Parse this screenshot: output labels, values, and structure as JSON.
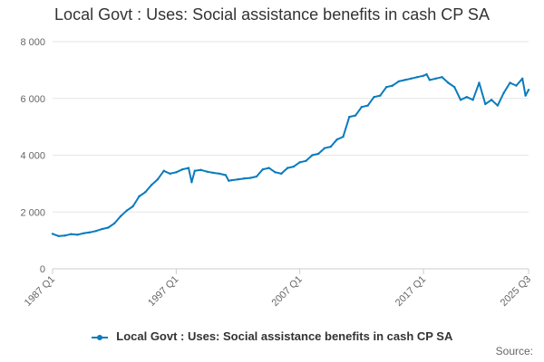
{
  "chart_data": {
    "type": "line",
    "title": "Local Govt : Uses: Social assistance benefits in cash CP SA",
    "xlabel": "",
    "ylabel": "",
    "x_start": "1987 Q1",
    "x_end": "2025 Q3",
    "x_ticks": [
      "1987 Q1",
      "1997 Q1",
      "2007 Q1",
      "2017 Q1",
      "2025 Q3"
    ],
    "y_ticks": [
      "0",
      "2 000",
      "4 000",
      "6 000",
      "8 000"
    ],
    "ylim": [
      0,
      8000
    ],
    "grid": true,
    "legend_position": "bottom",
    "color": "#0a7bbd",
    "series": [
      {
        "name": "Local Govt : Uses: Social assistance benefits in cash CP SA",
        "points": [
          [
            "1987 Q1",
            1230
          ],
          [
            "1987 Q3",
            1150
          ],
          [
            "1988 Q1",
            1170
          ],
          [
            "1988 Q3",
            1220
          ],
          [
            "1989 Q1",
            1200
          ],
          [
            "1989 Q3",
            1250
          ],
          [
            "1990 Q1",
            1280
          ],
          [
            "1990 Q3",
            1330
          ],
          [
            "1991 Q1",
            1400
          ],
          [
            "1991 Q3",
            1450
          ],
          [
            "1992 Q1",
            1600
          ],
          [
            "1992 Q3",
            1850
          ],
          [
            "1993 Q1",
            2050
          ],
          [
            "1993 Q3",
            2200
          ],
          [
            "1994 Q1",
            2550
          ],
          [
            "1994 Q3",
            2700
          ],
          [
            "1995 Q1",
            2950
          ],
          [
            "1995 Q3",
            3150
          ],
          [
            "1996 Q1",
            3450
          ],
          [
            "1996 Q3",
            3350
          ],
          [
            "1997 Q1",
            3400
          ],
          [
            "1997 Q3",
            3500
          ],
          [
            "1998 Q1",
            3550
          ],
          [
            "1998 Q2",
            3050
          ],
          [
            "1998 Q3",
            3450
          ],
          [
            "1999 Q1",
            3480
          ],
          [
            "1999 Q3",
            3420
          ],
          [
            "2000 Q1",
            3380
          ],
          [
            "2000 Q3",
            3350
          ],
          [
            "2001 Q1",
            3300
          ],
          [
            "2001 Q2",
            3100
          ],
          [
            "2001 Q3",
            3120
          ],
          [
            "2002 Q1",
            3150
          ],
          [
            "2002 Q3",
            3180
          ],
          [
            "2003 Q1",
            3200
          ],
          [
            "2003 Q3",
            3250
          ],
          [
            "2004 Q1",
            3500
          ],
          [
            "2004 Q3",
            3550
          ],
          [
            "2005 Q1",
            3400
          ],
          [
            "2005 Q3",
            3350
          ],
          [
            "2006 Q1",
            3550
          ],
          [
            "2006 Q3",
            3600
          ],
          [
            "2007 Q1",
            3750
          ],
          [
            "2007 Q3",
            3800
          ],
          [
            "2008 Q1",
            4000
          ],
          [
            "2008 Q3",
            4050
          ],
          [
            "2009 Q1",
            4250
          ],
          [
            "2009 Q3",
            4300
          ],
          [
            "2010 Q1",
            4550
          ],
          [
            "2010 Q3",
            4650
          ],
          [
            "2011 Q1",
            5350
          ],
          [
            "2011 Q3",
            5400
          ],
          [
            "2012 Q1",
            5700
          ],
          [
            "2012 Q3",
            5750
          ],
          [
            "2013 Q1",
            6050
          ],
          [
            "2013 Q3",
            6100
          ],
          [
            "2014 Q1",
            6400
          ],
          [
            "2014 Q3",
            6450
          ],
          [
            "2015 Q1",
            6600
          ],
          [
            "2015 Q3",
            6650
          ],
          [
            "2016 Q1",
            6700
          ],
          [
            "2016 Q3",
            6750
          ],
          [
            "2017 Q1",
            6800
          ],
          [
            "2017 Q2",
            6850
          ],
          [
            "2017 Q3",
            6650
          ],
          [
            "2018 Q1",
            6700
          ],
          [
            "2018 Q3",
            6750
          ],
          [
            "2019 Q1",
            6550
          ],
          [
            "2019 Q3",
            6400
          ],
          [
            "2020 Q1",
            5950
          ],
          [
            "2020 Q3",
            6050
          ],
          [
            "2021 Q1",
            5950
          ],
          [
            "2021 Q3",
            6550
          ],
          [
            "2022 Q1",
            5800
          ],
          [
            "2022 Q3",
            5950
          ],
          [
            "2023 Q1",
            5750
          ],
          [
            "2023 Q3",
            6200
          ],
          [
            "2024 Q1",
            6550
          ],
          [
            "2024 Q3",
            6450
          ],
          [
            "2025 Q1",
            6700
          ],
          [
            "2025 Q2",
            6100
          ],
          [
            "2025 Q3",
            6300
          ]
        ]
      }
    ]
  },
  "legend": {
    "label": "Local Govt : Uses: Social assistance benefits in cash CP SA"
  },
  "source": {
    "label": "Source:"
  }
}
